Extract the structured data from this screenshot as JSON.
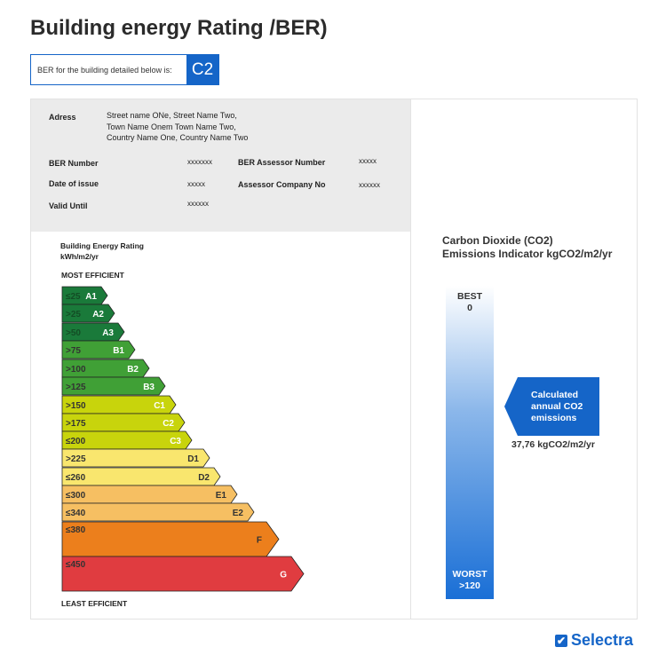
{
  "title": "Building energy Rating /BER)",
  "ber": {
    "label": "BER for the building detailed below is:",
    "value": "C2"
  },
  "info": {
    "address_label": "Adress",
    "address_lines": [
      "Street name ONe, Street Name Two,",
      "Town Name Onem Town Name Two,",
      "Country Name One, Country Name Two"
    ],
    "ber_number_label": "BER Number",
    "ber_number": "xxxxxxx",
    "date_label": "Date of issue",
    "date": "xxxxx",
    "valid_label": "Valid Until",
    "valid": "xxxxxx",
    "assessor_label": "BER Assessor Number",
    "assessor": "xxxxx",
    "company_label": "Assessor Company No",
    "company": "xxxxxx"
  },
  "rating": {
    "title_line1": "Building Energy Rating",
    "title_line2": "kWh/m2/yr",
    "most": "MOST EFFICIENT",
    "least": "LEAST EFFICIENT",
    "bands": [
      {
        "grade": "A1",
        "range": "≤25",
        "color": "#1a7a3a"
      },
      {
        "grade": "A2",
        "range": ">25",
        "color": "#1a7a3a"
      },
      {
        "grade": "A3",
        "range": ">50",
        "color": "#1a7a3a"
      },
      {
        "grade": "B1",
        "range": ">75",
        "color": "#40a036"
      },
      {
        "grade": "B2",
        "range": ">100",
        "color": "#40a036"
      },
      {
        "grade": "B3",
        "range": ">125",
        "color": "#40a036"
      },
      {
        "grade": "C1",
        "range": ">150",
        "color": "#c8d40c"
      },
      {
        "grade": "C2",
        "range": ">175",
        "color": "#c8d40c"
      },
      {
        "grade": "C3",
        "range": "≤200",
        "color": "#c8d40c"
      },
      {
        "grade": "D1",
        "range": ">225",
        "color": "#f9e66e"
      },
      {
        "grade": "D2",
        "range": "≤260",
        "color": "#f9e66e"
      },
      {
        "grade": "E1",
        "range": "≤300",
        "color": "#f6bf62"
      },
      {
        "grade": "E2",
        "range": "≤340",
        "color": "#f6bf62"
      },
      {
        "grade": "F",
        "range": "≤380",
        "color": "#ec7f1c"
      },
      {
        "grade": "G",
        "range": "≤450",
        "color": "#e03c40"
      }
    ]
  },
  "co2": {
    "title_line1": "Carbon Dioxide (CO2)",
    "title_line2": "Emissions Indicator kgCO2/m2/yr",
    "best_label": "BEST",
    "best_value": "0",
    "worst_label": "WORST",
    "worst_value": ">120",
    "callout_lines": [
      "Calculated",
      "annual CO2",
      "emissions"
    ],
    "value": "37,76 kgCO2/m2/yr",
    "accent": "#1565c8"
  },
  "logo": "Selectra"
}
